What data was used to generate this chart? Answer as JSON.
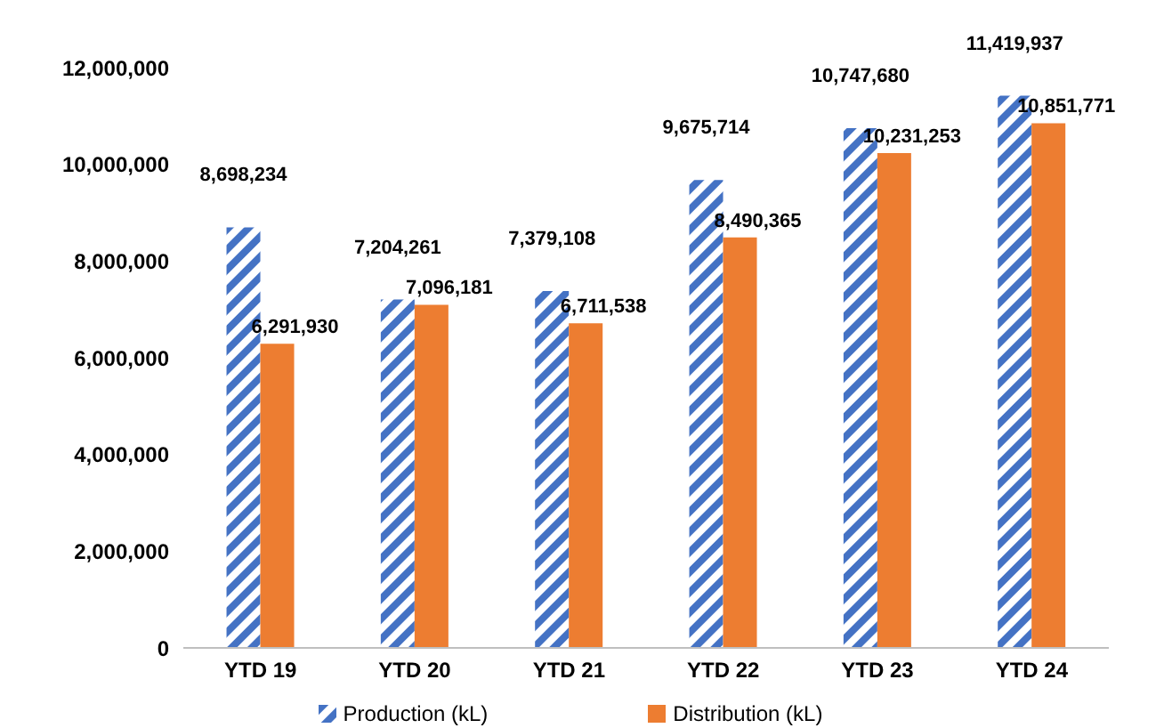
{
  "chart_data": {
    "type": "bar",
    "categories": [
      "YTD 19",
      "YTD 20",
      "YTD 21",
      "YTD 22",
      "YTD 23",
      "YTD 24"
    ],
    "series": [
      {
        "name": "Production (kL)",
        "color": "#4472c4",
        "values": [
          8698234,
          7204261,
          7379108,
          9675714,
          10747680,
          11419937
        ],
        "value_labels": [
          "8,698,234",
          "7,204,261",
          "7,379,108",
          "9,675,714",
          "10,747,680",
          "11,419,937"
        ]
      },
      {
        "name": "Distribution (kL)",
        "color": "#ed7d31",
        "values": [
          6291930,
          7096181,
          6711538,
          8490365,
          10231253,
          10851771
        ],
        "value_labels": [
          "6,291,930",
          "7,096,181",
          "6,711,538",
          "8,490,365",
          "10,231,253",
          "10,851,771"
        ]
      }
    ],
    "ylim": [
      0,
      12000000
    ],
    "yticks": [
      0,
      {
        "value": 2000000,
        "label": "2,000,000"
      },
      {
        "value": 4000000,
        "label": "4,000,000"
      },
      {
        "value": 6000000,
        "label": "6,000,000"
      },
      {
        "value": 8000000,
        "label": "8,000,000"
      },
      {
        "value": 10000000,
        "label": "10,000,000"
      },
      {
        "value": 12000000,
        "label": "12,000,000"
      }
    ],
    "grid": false,
    "legend": "bottom"
  }
}
